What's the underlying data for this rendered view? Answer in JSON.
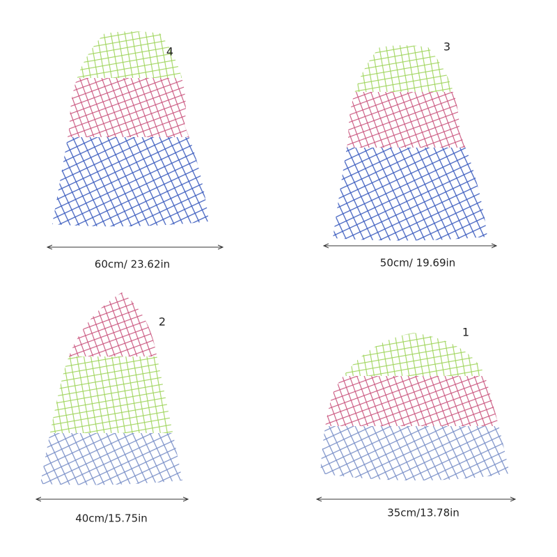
{
  "items": [
    {
      "number": "4",
      "size": "60cm/ 23.62in"
    },
    {
      "number": "3",
      "size": "50cm/ 19.69in"
    },
    {
      "number": "2",
      "size": "40cm/15.75in"
    },
    {
      "number": "1",
      "size": "35cm/13.78in"
    }
  ]
}
